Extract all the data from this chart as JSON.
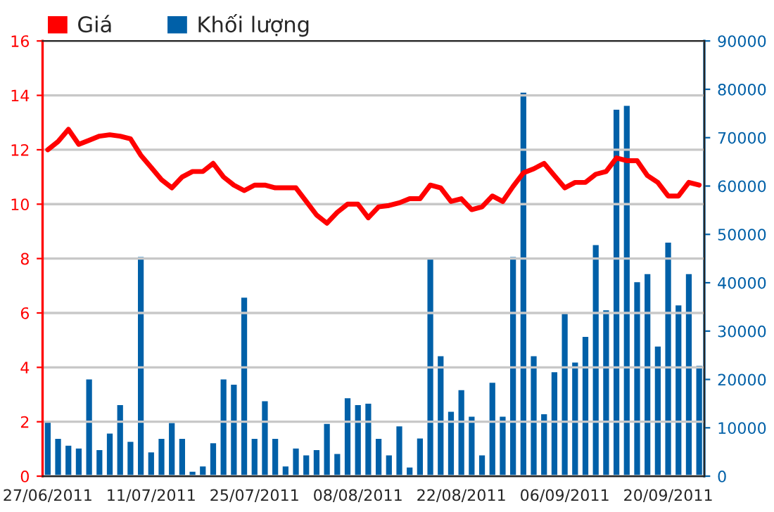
{
  "chart_data": {
    "type": "bar",
    "categories": [
      "27/06/2011",
      null,
      null,
      null,
      null,
      null,
      null,
      null,
      null,
      null,
      "11/07/2011",
      null,
      null,
      null,
      null,
      null,
      null,
      null,
      null,
      null,
      "25/07/2011",
      null,
      null,
      null,
      null,
      null,
      null,
      null,
      null,
      null,
      "08/08/2011",
      null,
      null,
      null,
      null,
      null,
      null,
      null,
      null,
      null,
      "22/08/2011",
      null,
      null,
      null,
      null,
      null,
      null,
      null,
      null,
      null,
      "06/09/2011",
      null,
      null,
      null,
      null,
      null,
      null,
      null,
      null,
      null,
      "20/09/2011",
      null,
      null,
      null
    ],
    "series": [
      {
        "name": "Giá",
        "type": "line",
        "color": "#ff0000",
        "values": [
          12.0,
          12.3,
          12.75,
          12.2,
          12.35,
          12.5,
          12.55,
          12.5,
          12.4,
          11.8,
          11.35,
          10.9,
          10.6,
          11.0,
          11.2,
          11.2,
          11.5,
          11.0,
          10.7,
          10.5,
          10.7,
          10.7,
          10.6,
          10.6,
          10.6,
          10.1,
          9.6,
          9.3,
          9.7,
          10.0,
          10.0,
          9.5,
          9.9,
          9.95,
          10.05,
          10.2,
          10.2,
          10.7,
          10.6,
          10.1,
          10.2,
          9.8,
          9.9,
          10.3,
          10.1,
          10.65,
          11.15,
          11.3,
          11.5,
          11.05,
          10.6,
          10.8,
          10.8,
          11.1,
          11.2,
          11.7,
          11.6,
          11.6,
          11.05,
          10.8,
          10.3,
          10.3,
          10.8,
          10.7
        ]
      },
      {
        "name": "Khối lượng",
        "axis": "y2",
        "color": "#0060a8",
        "values": [
          11500,
          7900,
          6500,
          5900,
          20200,
          5600,
          9000,
          14900,
          7300,
          45500,
          5100,
          7900,
          11200,
          7900,
          1100,
          2200,
          7000,
          20200,
          19100,
          37100,
          7900,
          15700,
          7900,
          2200,
          5900,
          4500,
          5600,
          11000,
          4800,
          16300,
          14900,
          15200,
          7900,
          4500,
          10500,
          2000,
          8000,
          45000,
          25000,
          13500,
          18000,
          12500,
          4500,
          19500,
          12500,
          45500,
          79500,
          25000,
          13000,
          21700,
          34000,
          23700,
          29000,
          48000,
          34500,
          76000,
          76800,
          40300,
          42000,
          27000,
          48500,
          35500,
          42000,
          23000
        ]
      }
    ],
    "ylim": [
      0,
      16
    ],
    "yticks": [
      0,
      2,
      4,
      6,
      8,
      10,
      12,
      14,
      16
    ],
    "y2lim": [
      0,
      90000
    ],
    "y2ticks": [
      0,
      10000,
      20000,
      30000,
      40000,
      50000,
      60000,
      70000,
      80000,
      90000
    ],
    "grid": "y",
    "legend": "top left"
  }
}
